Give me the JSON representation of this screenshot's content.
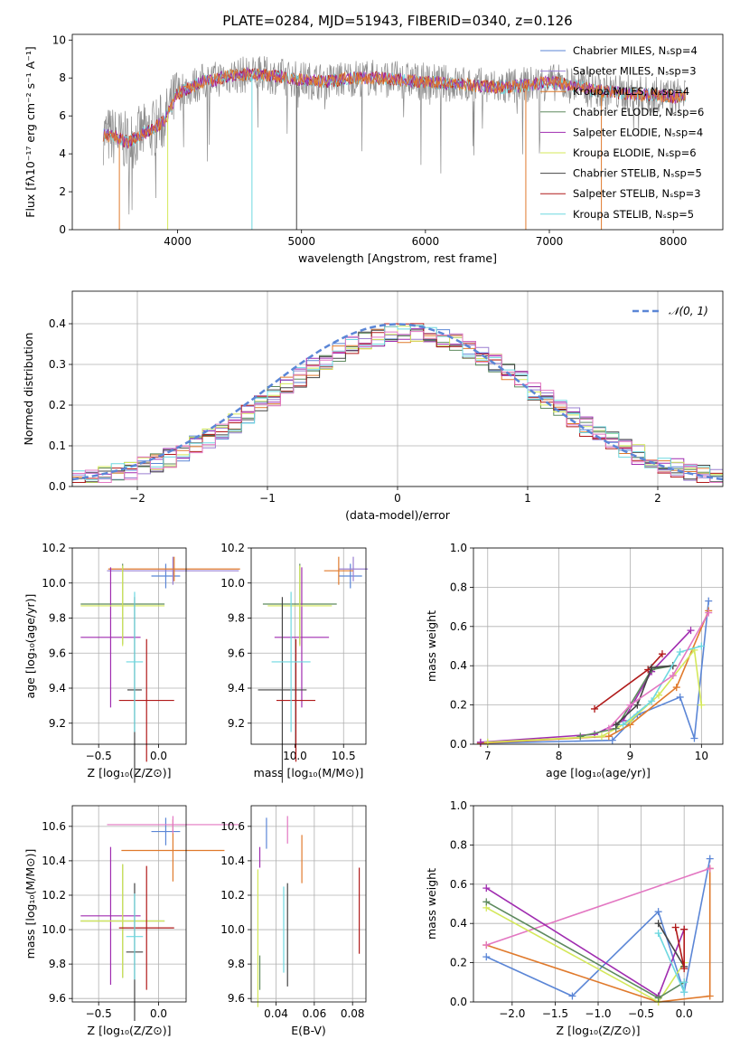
{
  "title": "PLATE=0284, MJD=51943, FIBERID=0340, z=0.126",
  "colors": {
    "chabrier_miles": "#5b86d6",
    "salpeter_miles": "#9a7fd1",
    "kroupa_miles": "#e07a2c",
    "chabrier_elodie": "#5e8a5e",
    "salpeter_elodie": "#a02cb0",
    "kroupa_elodie": "#d4e85a",
    "chabrier_stelib": "#444444",
    "salpeter_stelib": "#b01a1a",
    "kroupa_stelib": "#6ed8e0",
    "pink": "#e377c2",
    "normal": "#5b86d6",
    "grey_spectrum": "#8c8c8c"
  },
  "chart_data": [
    {
      "type": "line",
      "xlabel": "wavelength [Angstrom, rest frame]",
      "ylabel": "Flux [fλ10⁻¹⁷ erg cm⁻² s⁻¹ A⁻¹]",
      "xlim": [
        3150,
        8400
      ],
      "ylim": [
        0,
        10.3
      ],
      "xticks": [
        4000,
        5000,
        6000,
        7000,
        8000
      ],
      "yticks": [
        0,
        2,
        4,
        6,
        8,
        10
      ],
      "legend_position": "top-right",
      "legend": [
        "Chabrier MILES, Nₛsp=4",
        "Salpeter MILES, Nₛsp=3",
        "Kroupa MILES, Nₛsp=4",
        "Chabrier ELODIE, Nₛsp=6",
        "Salpeter ELODIE, Nₛsp=4",
        "Kroupa ELODIE, Nₛsp=6",
        "Chabrier STELIB, Nₛsp=5",
        "Salpeter STELIB, Nₛsp=3",
        "Kroupa STELIB, Nₛsp=5"
      ],
      "continuum": [
        [
          3400,
          5.0
        ],
        [
          3500,
          4.9
        ],
        [
          3600,
          4.6
        ],
        [
          3700,
          5.0
        ],
        [
          3800,
          5.3
        ],
        [
          3900,
          5.8
        ],
        [
          4000,
          7.2
        ],
        [
          4100,
          7.5
        ],
        [
          4200,
          7.8
        ],
        [
          4300,
          7.9
        ],
        [
          4400,
          8.1
        ],
        [
          4600,
          8.2
        ],
        [
          4800,
          8.1
        ],
        [
          5000,
          7.9
        ],
        [
          5200,
          7.8
        ],
        [
          5400,
          8.0
        ],
        [
          5600,
          8.0
        ],
        [
          5800,
          7.9
        ],
        [
          6000,
          7.8
        ],
        [
          6200,
          7.7
        ],
        [
          6400,
          7.6
        ],
        [
          6600,
          7.5
        ],
        [
          6800,
          7.6
        ],
        [
          7000,
          7.8
        ],
        [
          7200,
          7.6
        ],
        [
          7400,
          7.3
        ],
        [
          7600,
          7.2
        ],
        [
          7800,
          7.1
        ],
        [
          8000,
          7.0
        ],
        [
          8100,
          7.1
        ]
      ]
    },
    {
      "type": "line",
      "xlabel": "(data-model)/error",
      "ylabel": "Normed distribution",
      "xlim": [
        -2.5,
        2.5
      ],
      "ylim": [
        0,
        0.48
      ],
      "xticks": [
        -2,
        -1,
        0,
        1,
        2
      ],
      "yticks": [
        0.0,
        0.1,
        0.2,
        0.3,
        0.4
      ],
      "legend": [
        "𝒩(0, 1)"
      ],
      "legend_position": "top-right"
    },
    {
      "type": "scatter",
      "xlabel": "Z [log₁₀(Z/Z⊙)]",
      "ylabel": "age  [log₁₀(age/yr)]",
      "xlim": [
        -0.72,
        0.23
      ],
      "ylim": [
        9.08,
        10.2
      ],
      "xticks": [
        -0.5,
        0.0
      ],
      "yticks": [
        9.2,
        9.4,
        9.6,
        9.8,
        10.0,
        10.2
      ],
      "points": [
        {
          "x": 0.06,
          "y": 10.04,
          "xerr": 0.12,
          "yerr": 0.07,
          "series": "Chabrier MILES"
        },
        {
          "x": 0.12,
          "y": 10.07,
          "xerr": 0.55,
          "yerr": 0.08,
          "series": "Salpeter MILES"
        },
        {
          "x": 0.13,
          "y": 10.08,
          "xerr": 0.55,
          "yerr": 0.07,
          "series": "Kroupa MILES"
        },
        {
          "x": -0.3,
          "y": 9.88,
          "xerr": 0.35,
          "yerr": 0.23,
          "series": "Chabrier ELODIE"
        },
        {
          "x": -0.4,
          "y": 9.69,
          "xerr": 0.25,
          "yerr": 0.4,
          "series": "Salpeter ELODIE"
        },
        {
          "x": -0.3,
          "y": 9.87,
          "xerr": 0.35,
          "yerr": 0.23,
          "series": "Kroupa ELODIE"
        },
        {
          "x": -0.2,
          "y": 9.39,
          "xerr": 0.06,
          "yerr": 0.53,
          "series": "Chabrier STELIB"
        },
        {
          "x": -0.1,
          "y": 9.33,
          "xerr": 0.23,
          "yerr": 0.35,
          "series": "Salpeter STELIB"
        },
        {
          "x": -0.2,
          "y": 9.55,
          "xerr": 0.07,
          "yerr": 0.4,
          "series": "Kroupa STELIB"
        }
      ]
    },
    {
      "type": "scatter",
      "xlabel": "mass [log₁₀(M/M⊙)]",
      "xlim": [
        9.55,
        10.73
      ],
      "ylim": [
        9.08,
        10.2
      ],
      "xticks": [
        10.0,
        10.5
      ],
      "yticks": [
        9.2,
        9.4,
        9.6,
        9.8,
        10.0,
        10.2
      ],
      "points": [
        {
          "x": 10.57,
          "y": 10.04,
          "xerr": 0.12,
          "yerr": 0.07,
          "series": "Chabrier MILES"
        },
        {
          "x": 10.6,
          "y": 10.08,
          "xerr": 0.15,
          "yerr": 0.07,
          "series": "Salpeter MILES"
        },
        {
          "x": 10.45,
          "y": 10.07,
          "xerr": 0.15,
          "yerr": 0.08,
          "series": "Kroupa MILES"
        },
        {
          "x": 10.05,
          "y": 9.88,
          "xerr": 0.38,
          "yerr": 0.23,
          "series": "Chabrier ELODIE"
        },
        {
          "x": 10.07,
          "y": 9.69,
          "xerr": 0.28,
          "yerr": 0.4,
          "series": "Salpeter ELODIE"
        },
        {
          "x": 10.05,
          "y": 9.87,
          "xerr": 0.33,
          "yerr": 0.23,
          "series": "Kroupa ELODIE"
        },
        {
          "x": 9.87,
          "y": 9.39,
          "xerr": 0.25,
          "yerr": 0.53,
          "series": "Chabrier STELIB"
        },
        {
          "x": 10.01,
          "y": 9.33,
          "xerr": 0.2,
          "yerr": 0.35,
          "series": "Salpeter STELIB"
        },
        {
          "x": 9.96,
          "y": 9.55,
          "xerr": 0.2,
          "yerr": 0.4,
          "series": "Kroupa STELIB"
        }
      ]
    },
    {
      "type": "line",
      "xlabel": "age  [log₁₀(age/yr)]",
      "ylabel": "mass weight",
      "xlim": [
        6.8,
        10.3
      ],
      "ylim": [
        0,
        1.0
      ],
      "xticks": [
        7,
        8,
        9,
        10
      ],
      "yticks": [
        0.0,
        0.2,
        0.4,
        0.6,
        0.8,
        1.0
      ],
      "series": [
        {
          "name": "Chabrier MILES",
          "points": [
            [
              6.9,
              0.005
            ],
            [
              8.75,
              0.02
            ],
            [
              9.1,
              0.15
            ],
            [
              9.7,
              0.24
            ],
            [
              9.9,
              0.03
            ],
            [
              10.1,
              0.73
            ]
          ]
        },
        {
          "name": "Kroupa MILES",
          "points": [
            [
              6.9,
              0.005
            ],
            [
              8.7,
              0.04
            ],
            [
              9.0,
              0.1
            ],
            [
              9.65,
              0.29
            ],
            [
              10.1,
              0.68
            ]
          ]
        },
        {
          "name": "Salpeter ELODIE",
          "points": [
            [
              6.9,
              0.01
            ],
            [
              8.5,
              0.05
            ],
            [
              8.9,
              0.12
            ],
            [
              9.3,
              0.37
            ],
            [
              9.85,
              0.58
            ]
          ]
        },
        {
          "name": "Kroupa ELODIE",
          "points": [
            [
              7.0,
              0.01
            ],
            [
              8.6,
              0.04
            ],
            [
              9.0,
              0.12
            ],
            [
              9.4,
              0.25
            ],
            [
              9.9,
              0.48
            ],
            [
              10.0,
              0.2
            ]
          ]
        },
        {
          "name": "Chabrier ELODIE",
          "points": [
            [
              8.3,
              0.04
            ],
            [
              8.8,
              0.08
            ],
            [
              9.3,
              0.38
            ],
            [
              9.6,
              0.4
            ]
          ]
        },
        {
          "name": "Salpeter STELIB",
          "points": [
            [
              8.5,
              0.18
            ],
            [
              9.25,
              0.38
            ],
            [
              9.45,
              0.46
            ]
          ]
        },
        {
          "name": "Chabrier STELIB",
          "points": [
            [
              8.8,
              0.1
            ],
            [
              9.1,
              0.2
            ],
            [
              9.3,
              0.39
            ],
            [
              9.6,
              0.4
            ]
          ]
        },
        {
          "name": "Kroupa STELIB",
          "points": [
            [
              8.9,
              0.1
            ],
            [
              9.3,
              0.22
            ],
            [
              9.7,
              0.47
            ],
            [
              10.0,
              0.5
            ]
          ]
        },
        {
          "name": "pink",
          "points": [
            [
              8.7,
              0.08
            ],
            [
              9.0,
              0.2
            ],
            [
              9.6,
              0.35
            ],
            [
              10.1,
              0.67
            ]
          ]
        }
      ]
    },
    {
      "type": "scatter",
      "xlabel": "Z [log₁₀(Z/Z⊙)]",
      "ylabel": "mass [log₁₀(M/M⊙)]",
      "xlim": [
        -0.72,
        0.23
      ],
      "ylim": [
        9.58,
        10.72
      ],
      "xticks": [
        -0.5,
        0.0
      ],
      "yticks": [
        9.6,
        9.8,
        10.0,
        10.2,
        10.4,
        10.6
      ],
      "points": [
        {
          "x": 0.06,
          "y": 10.57,
          "xerr": 0.12,
          "yerr": 0.08,
          "series": "Chabrier MILES"
        },
        {
          "x": 0.12,
          "y": 10.46,
          "xerr": 0.43,
          "yerr": 0.18,
          "series": "Kroupa MILES"
        },
        {
          "x": 0.12,
          "y": 10.61,
          "xerr": 0.55,
          "yerr": 0.05,
          "series": "pink"
        },
        {
          "x": -0.3,
          "y": 10.05,
          "xerr": 0.35,
          "yerr": 0.33,
          "series": "Chabrier ELODIE"
        },
        {
          "x": -0.4,
          "y": 10.08,
          "xerr": 0.25,
          "yerr": 0.4,
          "series": "Salpeter ELODIE"
        },
        {
          "x": -0.3,
          "y": 10.05,
          "xerr": 0.35,
          "yerr": 0.33,
          "series": "Kroupa ELODIE"
        },
        {
          "x": -0.2,
          "y": 9.87,
          "xerr": 0.07,
          "yerr": 0.4,
          "series": "Chabrier STELIB"
        },
        {
          "x": -0.1,
          "y": 10.01,
          "xerr": 0.23,
          "yerr": 0.36,
          "series": "Salpeter STELIB"
        },
        {
          "x": -0.2,
          "y": 9.96,
          "xerr": 0.07,
          "yerr": 0.25,
          "series": "Kroupa STELIB"
        }
      ]
    },
    {
      "type": "scatter",
      "xlabel": "E(B-V)",
      "xlim": [
        0.027,
        0.087
      ],
      "ylim": [
        9.58,
        10.72
      ],
      "xticks": [
        0.04,
        0.06,
        0.08
      ],
      "yticks": [
        9.6,
        9.8,
        10.0,
        10.2,
        10.4,
        10.6
      ],
      "points": [
        {
          "x": 0.0315,
          "y": 10.42,
          "yerr": 0.06,
          "series": "Salpeter ELODIE"
        },
        {
          "x": 0.0305,
          "y": 9.95,
          "yerr": 0.4,
          "series": "Kroupa ELODIE"
        },
        {
          "x": 0.0315,
          "y": 9.75,
          "yerr": 0.1,
          "series": "Chabrier ELODIE"
        },
        {
          "x": 0.035,
          "y": 10.56,
          "yerr": 0.09,
          "series": "Chabrier MILES"
        },
        {
          "x": 0.044,
          "y": 10.0,
          "yerr": 0.25,
          "series": "Kroupa STELIB"
        },
        {
          "x": 0.046,
          "y": 9.97,
          "yerr": 0.3,
          "series": "Chabrier STELIB"
        },
        {
          "x": 0.046,
          "y": 10.58,
          "yerr": 0.08,
          "series": "pink"
        },
        {
          "x": 0.0535,
          "y": 10.41,
          "yerr": 0.14,
          "series": "Kroupa MILES"
        },
        {
          "x": 0.0835,
          "y": 10.11,
          "yerr": 0.25,
          "series": "Salpeter STELIB"
        }
      ]
    },
    {
      "type": "line",
      "xlabel": "Z [log₁₀(Z/Z⊙)]",
      "ylabel": "mass weight",
      "xlim": [
        -2.45,
        0.45
      ],
      "ylim": [
        0,
        1.0
      ],
      "xticks": [
        -2.0,
        -1.5,
        -1.0,
        -0.5,
        0.0
      ],
      "yticks": [
        0.0,
        0.2,
        0.4,
        0.6,
        0.8,
        1.0
      ],
      "series": [
        {
          "name": "Chabrier MILES",
          "points": [
            [
              -2.3,
              0.23
            ],
            [
              -1.3,
              0.03
            ],
            [
              -0.3,
              0.46
            ],
            [
              0.0,
              0.05
            ],
            [
              0.3,
              0.73
            ]
          ]
        },
        {
          "name": "Kroupa MILES",
          "points": [
            [
              -2.3,
              0.29
            ],
            [
              -0.3,
              0.0
            ],
            [
              0.3,
              0.03
            ],
            [
              0.3,
              0.68
            ]
          ]
        },
        {
          "name": "pink",
          "points": [
            [
              -2.3,
              0.29
            ],
            [
              0.3,
              0.68
            ]
          ]
        },
        {
          "name": "Salpeter ELODIE",
          "points": [
            [
              -2.3,
              0.58
            ],
            [
              -0.3,
              0.03
            ],
            [
              0.0,
              0.37
            ]
          ]
        },
        {
          "name": "Kroupa ELODIE",
          "points": [
            [
              -2.3,
              0.48
            ],
            [
              -0.3,
              0.0
            ],
            [
              0.0,
              0.2
            ]
          ]
        },
        {
          "name": "Chabrier ELODIE",
          "points": [
            [
              -2.3,
              0.51
            ],
            [
              -0.3,
              0.02
            ],
            [
              0.0,
              0.1
            ]
          ]
        },
        {
          "name": "Chabrier STELIB",
          "points": [
            [
              -0.3,
              0.4
            ],
            [
              0.0,
              0.18
            ]
          ]
        },
        {
          "name": "Salpeter STELIB",
          "points": [
            [
              -0.1,
              0.38
            ],
            [
              0.0,
              0.17
            ],
            [
              0.0,
              0.37
            ]
          ]
        },
        {
          "name": "Kroupa STELIB",
          "points": [
            [
              -0.3,
              0.35
            ],
            [
              0.0,
              0.05
            ],
            [
              0.0,
              0.1
            ]
          ]
        }
      ]
    }
  ]
}
